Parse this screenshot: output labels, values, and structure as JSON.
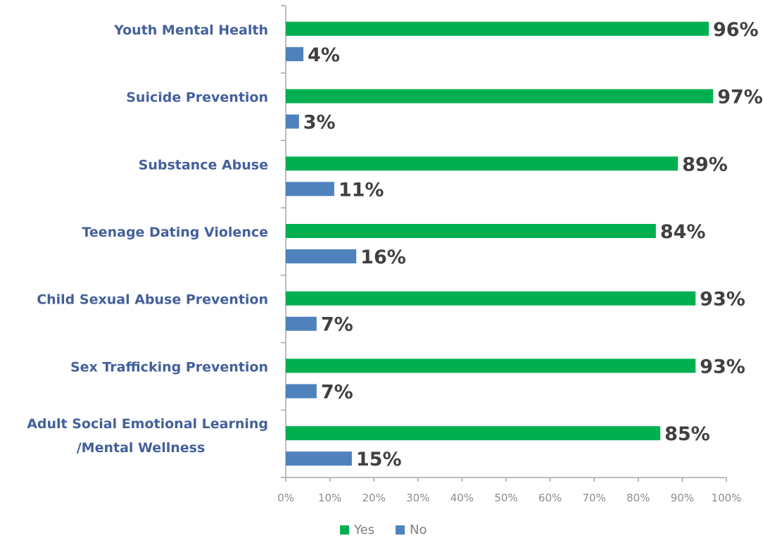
{
  "chart_data": {
    "type": "bar",
    "orientation": "horizontal",
    "categories": [
      [
        "Youth Mental Health"
      ],
      [
        "Suicide Prevention"
      ],
      [
        "Substance Abuse"
      ],
      [
        "Teenage Dating Violence"
      ],
      [
        "Child Sexual Abuse Prevention"
      ],
      [
        "Sex Trafficking Prevention"
      ],
      [
        "Adult Social Emotional Learning",
        "/Mental Wellness"
      ]
    ],
    "series": [
      {
        "name": "Yes",
        "color": "#00b050",
        "values": [
          96,
          97,
          89,
          84,
          93,
          93,
          85
        ],
        "labels": [
          "96%",
          "97%",
          "89%",
          "84%",
          "93%",
          "93%",
          "85%"
        ]
      },
      {
        "name": "No",
        "color": "#4f81bd",
        "values": [
          4,
          3,
          11,
          16,
          7,
          7,
          15
        ],
        "labels": [
          "4%",
          "3%",
          "11%",
          "16%",
          "7%",
          "7%",
          "15%"
        ]
      }
    ],
    "xlim": [
      0,
      100
    ],
    "xticks": [
      0,
      10,
      20,
      30,
      40,
      50,
      60,
      70,
      80,
      90,
      100
    ],
    "xtick_labels": [
      "0%",
      "10%",
      "20%",
      "30%",
      "40%",
      "50%",
      "60%",
      "70%",
      "80%",
      "90%",
      "100%"
    ],
    "grid": false,
    "legend_position": "bottom"
  }
}
